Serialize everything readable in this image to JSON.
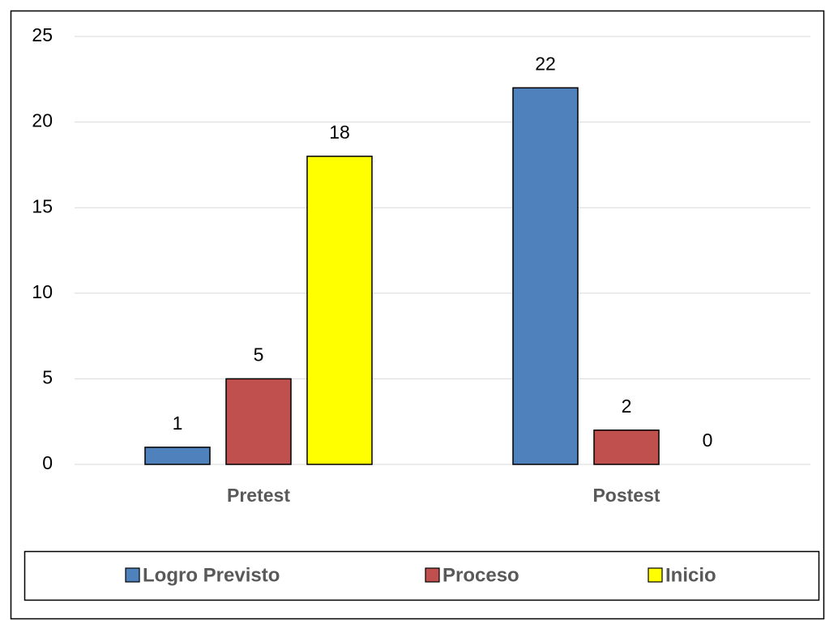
{
  "chart_data": {
    "type": "bar",
    "categories": [
      "Pretest",
      "Postest"
    ],
    "series": [
      {
        "name": "Logro Previsto",
        "color": "#4f81bd",
        "values": [
          1,
          22
        ]
      },
      {
        "name": "Proceso",
        "color": "#c0504d",
        "values": [
          5,
          2
        ]
      },
      {
        "name": "Inicio",
        "color": "#ffff00",
        "values": [
          18,
          0
        ]
      }
    ],
    "ylim": [
      0,
      25
    ],
    "yticks": [
      0,
      5,
      10,
      15,
      20,
      25
    ],
    "grid": true,
    "legend": "bottom"
  }
}
